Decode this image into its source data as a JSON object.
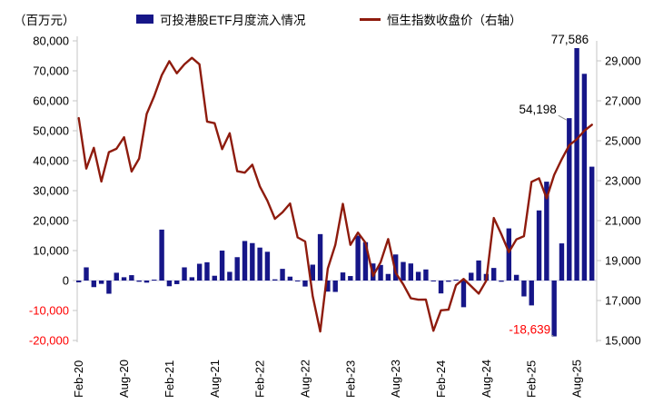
{
  "chart_data": {
    "type": "bar+line",
    "title": "",
    "unit_label": "（百万元）",
    "legend_position": "top",
    "grid": "none",
    "categories": [
      "Feb-20",
      "Mar-20",
      "Apr-20",
      "May-20",
      "Jun-20",
      "Jul-20",
      "Aug-20",
      "Sep-20",
      "Oct-20",
      "Nov-20",
      "Dec-20",
      "Jan-21",
      "Feb-21",
      "Mar-21",
      "Apr-21",
      "May-21",
      "Jun-21",
      "Jul-21",
      "Aug-21",
      "Sep-21",
      "Oct-21",
      "Nov-21",
      "Dec-21",
      "Jan-22",
      "Feb-22",
      "Mar-22",
      "Apr-22",
      "May-22",
      "Jun-22",
      "Jul-22",
      "Aug-22",
      "Sep-22",
      "Oct-22",
      "Nov-22",
      "Dec-22",
      "Jan-23",
      "Feb-23",
      "Mar-23",
      "Apr-23",
      "May-23",
      "Jun-23",
      "Jul-23",
      "Aug-23",
      "Sep-23",
      "Oct-23",
      "Nov-23",
      "Dec-23",
      "Jan-24",
      "Feb-24",
      "Mar-24",
      "Apr-24",
      "May-24",
      "Jun-24",
      "Jul-24",
      "Aug-24",
      "Sep-24",
      "Oct-24",
      "Nov-24",
      "Dec-24",
      "Jan-25",
      "Feb-25",
      "Mar-25",
      "Apr-25",
      "May-25",
      "Jun-25",
      "Jul-25",
      "Aug-25",
      "Sep-25",
      "Oct-25"
    ],
    "series": [
      {
        "name": "可投港股ETF月度流入情况",
        "type": "bar",
        "axis": "left",
        "color": "#161688",
        "values": [
          -600,
          4400,
          -2200,
          -1100,
          -4400,
          2600,
          1100,
          1800,
          -400,
          -700,
          300,
          17000,
          -1900,
          -1200,
          4400,
          1100,
          5600,
          6100,
          1600,
          10000,
          2900,
          7800,
          13200,
          12500,
          11000,
          9600,
          400,
          3900,
          1300,
          -300,
          -2000,
          5300,
          15500,
          -3700,
          -3800,
          2700,
          1500,
          15000,
          12800,
          5700,
          5200,
          2200,
          8700,
          6200,
          5700,
          2900,
          3700,
          -300,
          -4300,
          -400,
          300,
          -8900,
          2600,
          6700,
          2200,
          4200,
          -400,
          17400,
          1900,
          -5300,
          -8300,
          23400,
          33000,
          -18639,
          12400,
          54198,
          77586,
          69000,
          38000
        ]
      },
      {
        "name": "恒生指数收盘价（右轴）",
        "type": "line",
        "axis": "right",
        "color": "#8E1B0D",
        "values": [
          26130,
          23603,
          24644,
          22961,
          24427,
          24595,
          25177,
          23459,
          24107,
          26341,
          27231,
          28284,
          28980,
          28378,
          28825,
          29152,
          28828,
          25961,
          25879,
          24576,
          25377,
          23475,
          23398,
          23802,
          22713,
          21997,
          21089,
          21415,
          21860,
          20157,
          19954,
          17223,
          15450,
          18597,
          19781,
          21842,
          19786,
          20400,
          19895,
          18234,
          18916,
          20079,
          18382,
          17810,
          17112,
          17043,
          17047,
          15485,
          16511,
          16541,
          17763,
          18080,
          17719,
          17345,
          17989,
          21134,
          20317,
          19424,
          20060,
          20225,
          22941,
          23120,
          22119,
          23290,
          24072,
          24773,
          25077,
          25500,
          25800
        ]
      }
    ],
    "left_axis": {
      "min": -20000,
      "max": 80000,
      "step": 10000,
      "negative_label_color": "#FF0000"
    },
    "right_axis": {
      "min": 15000,
      "max": 29000,
      "step": 2000
    },
    "x_tick_labels": [
      "Feb-20",
      "Aug-20",
      "Feb-21",
      "Aug-21",
      "Feb-22",
      "Aug-22",
      "Feb-23",
      "Aug-23",
      "Feb-24",
      "Aug-24",
      "Feb-25",
      "Aug-25"
    ],
    "annotations": [
      {
        "text": "77,586",
        "month": "Aug-25",
        "color": "#000000",
        "placement": "above",
        "connector": false
      },
      {
        "text": "54,198",
        "month": "Jul-25",
        "color": "#000000",
        "placement": "left-of-top",
        "connector": true
      },
      {
        "text": "-18,639",
        "month": "May-25",
        "color": "#FF0000",
        "placement": "left-of-bottom",
        "connector": true
      }
    ]
  }
}
